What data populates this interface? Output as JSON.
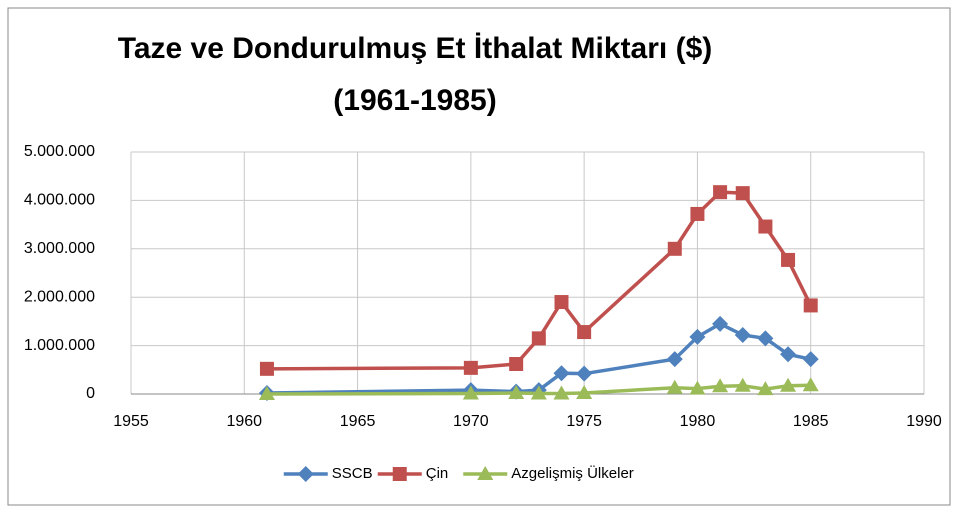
{
  "chart_data": {
    "type": "line",
    "title": [
      "Taze ve Dondurulmuş Et İthalat Miktarı ($)",
      "(1961-1985)"
    ],
    "x": [
      1961,
      1970,
      1972,
      1973,
      1974,
      1975,
      1979,
      1980,
      1981,
      1982,
      1983,
      1984,
      1985
    ],
    "series": [
      {
        "name": "SSCB",
        "color": "#4f81bd",
        "marker": "diamond",
        "values": [
          20000,
          80000,
          50000,
          80000,
          430000,
          420000,
          720000,
          1180000,
          1450000,
          1220000,
          1150000,
          820000,
          720000
        ]
      },
      {
        "name": "Çin",
        "color": "#c0504d",
        "marker": "square",
        "values": [
          520000,
          540000,
          620000,
          1150000,
          1900000,
          1280000,
          3000000,
          3720000,
          4170000,
          4150000,
          3460000,
          2770000,
          1830000
        ]
      },
      {
        "name": "Azgelişmiş Ülkeler",
        "color": "#9bbb59",
        "marker": "triangle",
        "values": [
          0,
          10000,
          20000,
          10000,
          10000,
          20000,
          130000,
          110000,
          160000,
          170000,
          100000,
          170000,
          180000
        ]
      }
    ],
    "xlim": [
      1955,
      1990
    ],
    "xticks": [
      1955,
      1960,
      1965,
      1970,
      1975,
      1980,
      1985,
      1990
    ],
    "ylim": [
      0,
      5000000
    ],
    "yticks": [
      0,
      {
        "value": 1000000,
        "label": "1.000.000"
      },
      {
        "value": 2000000,
        "label": "2.000.000"
      },
      {
        "value": 3000000,
        "label": "3.000.000"
      },
      {
        "value": 4000000,
        "label": "4.000.000"
      },
      {
        "value": 5000000,
        "label": "5.000.000"
      }
    ],
    "grid": true,
    "legend": "bottom"
  }
}
